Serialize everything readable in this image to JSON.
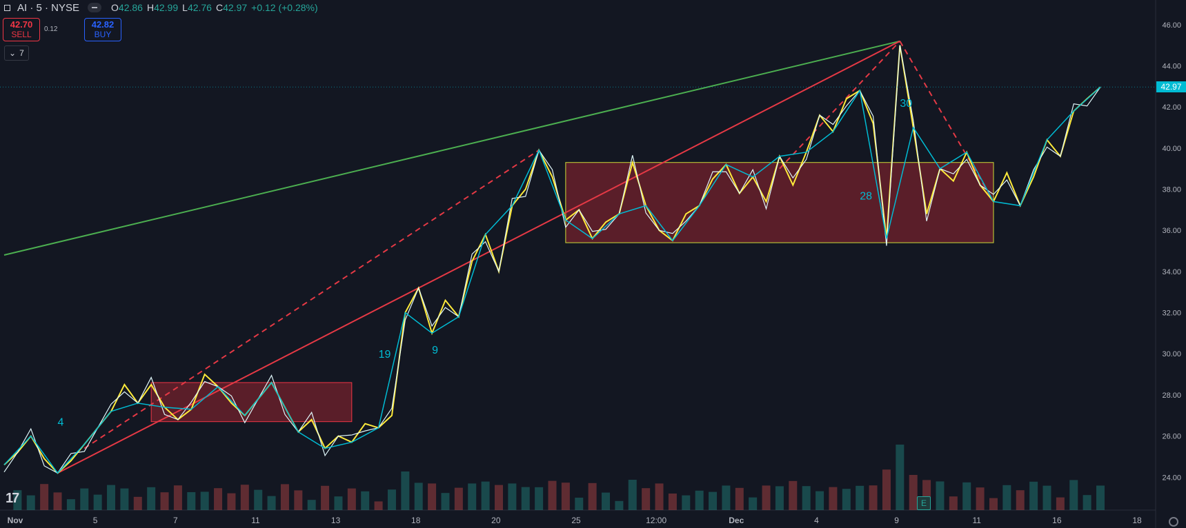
{
  "header": {
    "symbol": "AI · 5 · NYSE",
    "open_label": "O",
    "open": "42.86",
    "high_label": "H",
    "high": "42.99",
    "low_label": "L",
    "low": "42.76",
    "close_label": "C",
    "close": "42.97",
    "change": "+0.12 (+0.28%)"
  },
  "trade": {
    "sell_price": "42.70",
    "sell_label": "SELL",
    "spread": "0.12",
    "buy_price": "42.82",
    "buy_label": "BUY"
  },
  "indicators": {
    "count": "7"
  },
  "last_price": "42.97",
  "earnings_badge": "E",
  "colors": {
    "background": "#131722",
    "up": "#26a69a",
    "down": "#ef5350",
    "accent": "#00bcd4",
    "zigzag_yellow": "#ffeb3b",
    "trend_red": "#e53945",
    "trend_green": "#4caf50"
  },
  "chart_data": {
    "type": "line",
    "y_axis": {
      "ticks": [
        46,
        44,
        42,
        40,
        38,
        36,
        34,
        32,
        30,
        28,
        26,
        24
      ],
      "tick_labels": [
        "46.00",
        "44.00",
        "42.00",
        "40.00",
        "38.00",
        "36.00",
        "34.00",
        "32.00",
        "30.00",
        "28.00",
        "26.00",
        "24.00"
      ],
      "ylim": [
        22.4,
        47.2
      ]
    },
    "x_axis": {
      "tick_labels": [
        "Nov",
        "5",
        "7",
        "11",
        "13",
        "18",
        "20",
        "25",
        "12:00",
        "Dec",
        "4",
        "9",
        "11",
        "16",
        "18"
      ],
      "bold_ticks": [
        "Nov",
        "Dec"
      ]
    },
    "series": [
      {
        "values": [
          24.6,
          25.2,
          26.0,
          24.9,
          24.2,
          24.8,
          25.6,
          26.4,
          27.2,
          28.5,
          27.6,
          28.5,
          27.4,
          26.8,
          27.3,
          29.0,
          28.4,
          27.6,
          27.0,
          27.8,
          28.6,
          27.4,
          26.2,
          26.8,
          25.4,
          26.0,
          25.7,
          26.6,
          26.4,
          27.0,
          32.0,
          33.2,
          31.0,
          32.6,
          31.8,
          34.5,
          35.8,
          34.0,
          37.2,
          38.0,
          39.9,
          38.6,
          36.5,
          37.0,
          35.6,
          36.4,
          36.8,
          39.3,
          37.2,
          36.0,
          35.5,
          36.8,
          37.2,
          38.5,
          39.2,
          37.8,
          38.6,
          37.4,
          39.6,
          38.2,
          39.8,
          41.6,
          40.8,
          42.4,
          42.8,
          41.2,
          35.6,
          45.0,
          41.0,
          36.8,
          39.0,
          38.4,
          39.8,
          38.2,
          37.4,
          38.8,
          37.2,
          38.6,
          40.4,
          39.6,
          41.8,
          42.4,
          42.97
        ]
      }
    ],
    "annotations": [
      {
        "type": "trendline",
        "color": "green",
        "from": [
          0,
          34.8
        ],
        "to": [
          67,
          45.2
        ]
      },
      {
        "type": "trendline",
        "color": "red",
        "from": [
          4,
          24.2
        ],
        "to": [
          67,
          45.2
        ]
      },
      {
        "type": "rectangle",
        "color": "red",
        "x": [
          11,
          26
        ],
        "y": [
          26.7,
          28.6
        ]
      },
      {
        "type": "rectangle",
        "color": "red",
        "x": [
          42,
          74
        ],
        "y": [
          35.4,
          39.3
        ]
      }
    ],
    "wave_labels": [
      "4",
      "9",
      "19",
      "28",
      "30"
    ]
  }
}
